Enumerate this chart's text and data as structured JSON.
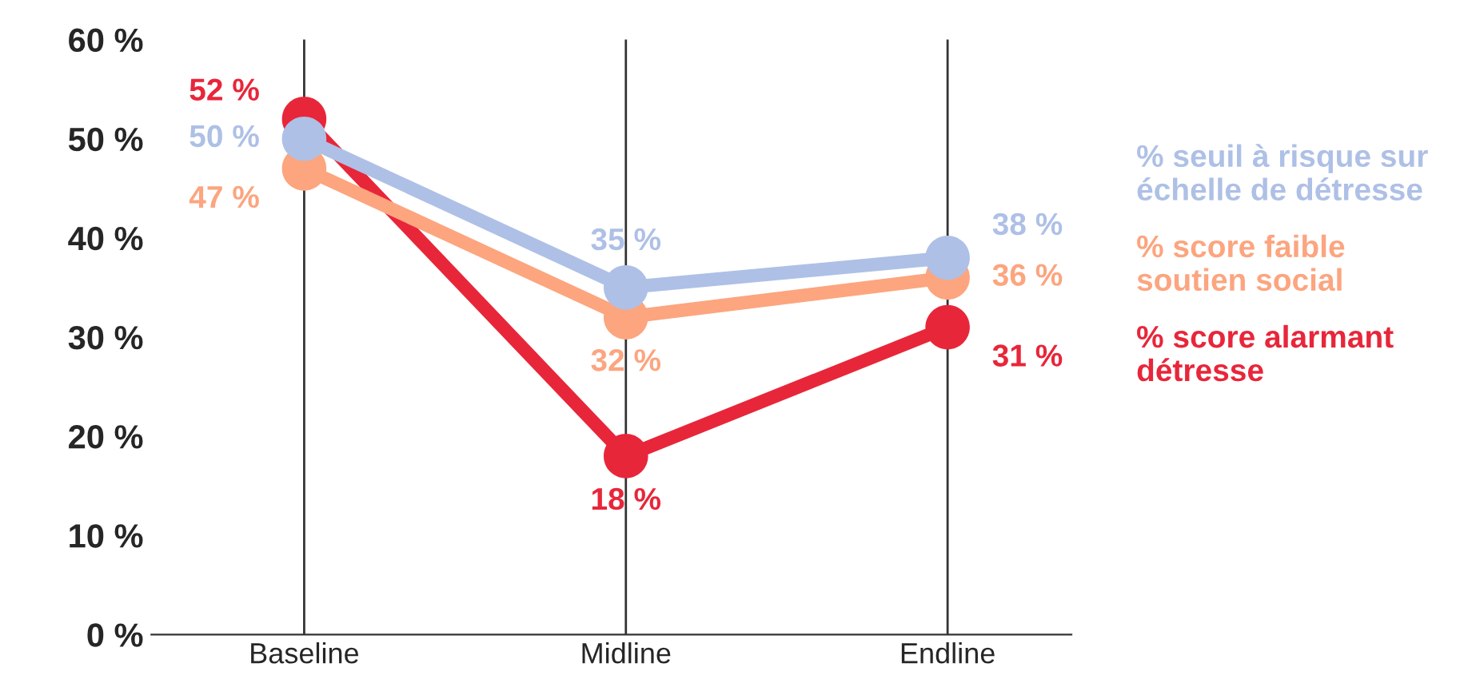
{
  "chart_data": {
    "type": "line",
    "categories": [
      "Baseline",
      "Midline",
      "Endline"
    ],
    "series": [
      {
        "name": "% seuil à risque sur\néchelle de détresse",
        "color": "#aec0e6",
        "values": [
          50,
          35,
          38
        ],
        "value_labels": [
          "50 %",
          "35 %",
          "38 %"
        ]
      },
      {
        "name": "% score faible\nsoutien social",
        "color": "#fca57f",
        "values": [
          47,
          32,
          36
        ],
        "value_labels": [
          "47 %",
          "32 %",
          "36 %"
        ]
      },
      {
        "name": "% score alarmant\ndétresse",
        "color": "#e8263a",
        "values": [
          52,
          18,
          31
        ],
        "value_labels": [
          "52 %",
          "18 %",
          "31 %"
        ]
      }
    ],
    "ylim": [
      0,
      60
    ],
    "yticks": [
      {
        "value": 0,
        "label": "0 %"
      },
      {
        "value": 10,
        "label": "10 %"
      },
      {
        "value": 20,
        "label": "20 %"
      },
      {
        "value": 30,
        "label": "30 %"
      },
      {
        "value": 40,
        "label": "40 %"
      },
      {
        "value": 50,
        "label": "50 %"
      },
      {
        "value": 60,
        "label": "60 %"
      }
    ],
    "grid": "x",
    "legend": "right",
    "marker": "circle",
    "line_style": "solid"
  }
}
